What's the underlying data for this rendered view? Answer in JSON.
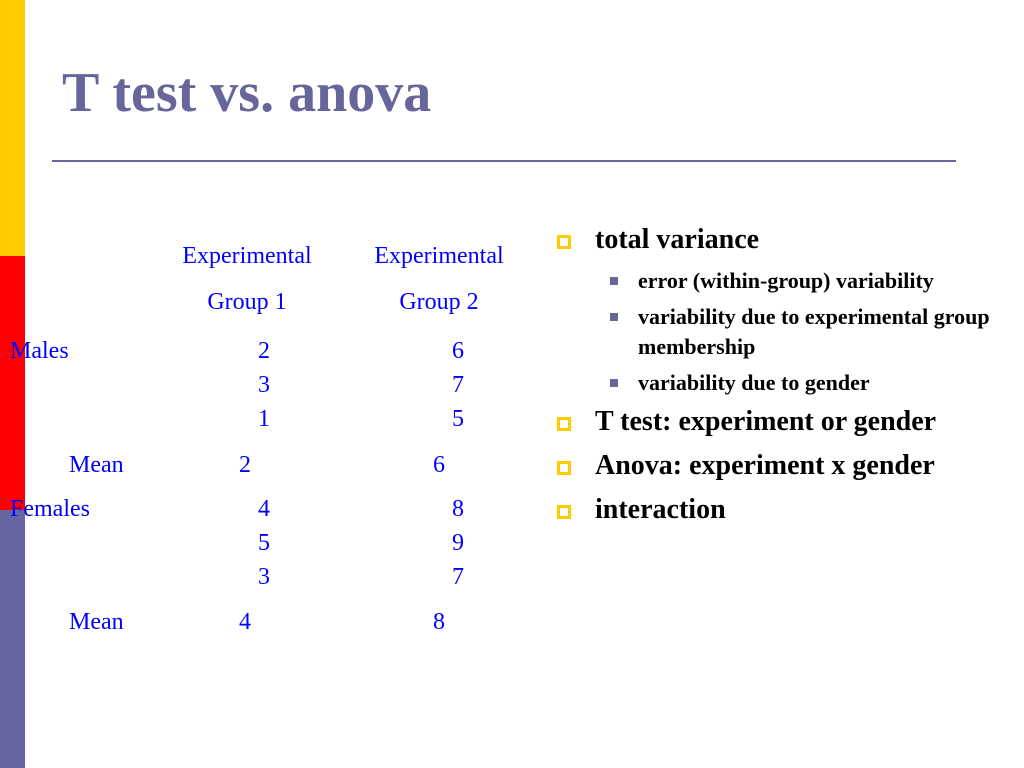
{
  "slide": {
    "title": "T test vs. anova"
  },
  "table": {
    "headers": [
      {
        "line1": "Experimental",
        "line2": "Group 1"
      },
      {
        "line1": "Experimental",
        "line2": "Group 2"
      }
    ],
    "males_label": "Males",
    "females_label": "Females",
    "mean_label": "Mean",
    "males_group1": [
      "2",
      "3",
      "1"
    ],
    "males_group2": [
      "6",
      "7",
      "5"
    ],
    "males_mean": [
      "2",
      "6"
    ],
    "females_group1": [
      "4",
      "5",
      "3"
    ],
    "females_group2": [
      "8",
      "9",
      "7"
    ],
    "females_mean": [
      "4",
      "8"
    ]
  },
  "bullets": {
    "total_variance": "total variance",
    "sub": [
      "error (within-group) variability",
      " variability due to experimental group membership",
      " variability due to gender"
    ],
    "t_test": "T test: experiment or gender",
    "anova": "Anova: experiment x gender",
    "interaction": "interaction"
  },
  "colors": {
    "title": "#66669a",
    "table_text": "#0000ff",
    "bar_yellow": "#ffcc00",
    "bar_red": "#ff0000",
    "bar_purple": "#6666a3",
    "bullet_marker": "#ffcc00",
    "sub_bullet_marker": "#66669a"
  }
}
